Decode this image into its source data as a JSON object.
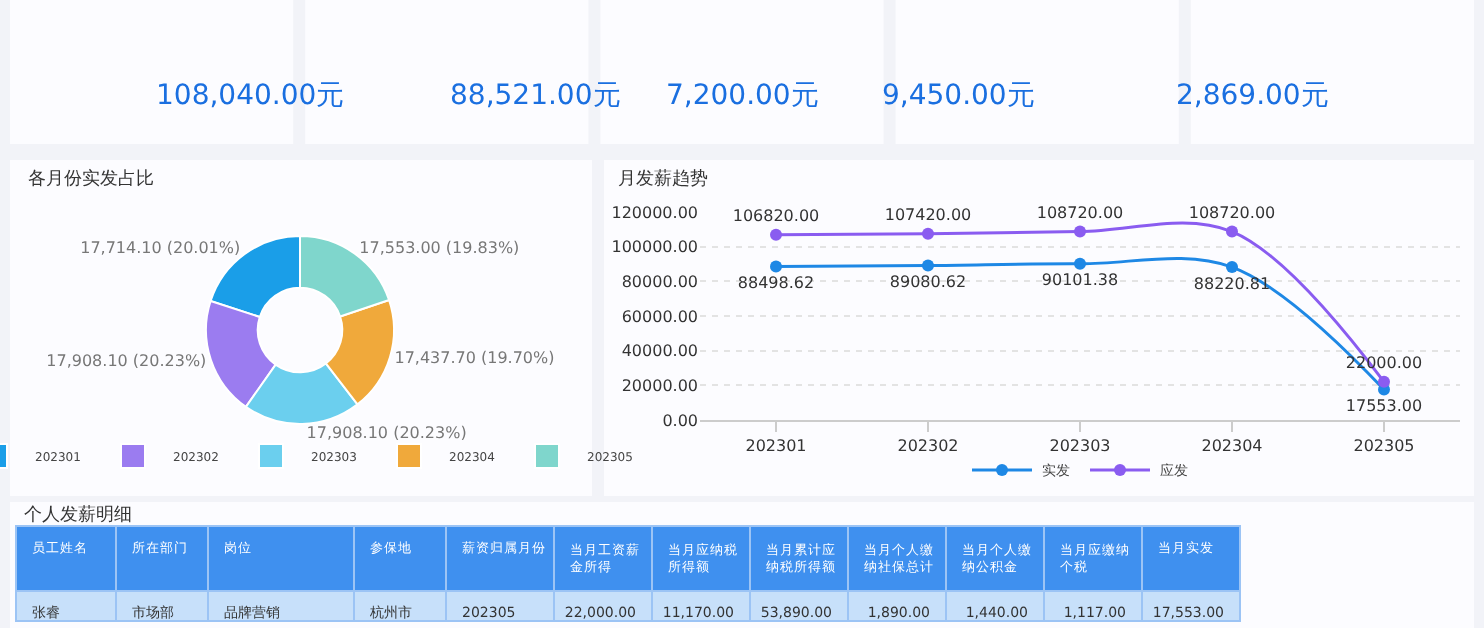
{
  "chart_data": [
    {
      "type": "other",
      "annotations": [
        "108,040.00元",
        "88,521.00元",
        "7,200.00元",
        "9,450.00元",
        "2,869.00元"
      ]
    },
    {
      "type": "donut",
      "title": "各月份实发占比",
      "categories": [
        "202301",
        "202302",
        "202303",
        "202304",
        "202305"
      ],
      "values": [
        17714.1,
        17908.1,
        17908.1,
        17437.7,
        17553.0
      ],
      "colors": [
        "#1a9ee8",
        "#9b7cf0",
        "#6bcfee",
        "#f0a93b",
        "#7fd6cc"
      ],
      "value_labels": [
        "17,714.10 (20.01%)",
        "17,908.10 (20.23%)",
        "17,908.10 (20.23%)",
        "17,437.70 (19.70%)",
        "17,553.00 (19.83%)"
      ],
      "legend": "bottom"
    },
    {
      "type": "line",
      "title": "月发薪趋势",
      "categories": [
        "202301",
        "202302",
        "202303",
        "202304",
        "202305"
      ],
      "series": [
        {
          "name": "实发",
          "color": "#1e88e5",
          "values": [
            88498.62,
            89080.62,
            90101.38,
            88220.81,
            17553.0
          ],
          "value_labels": [
            "88498.62",
            "89080.62",
            "90101.38",
            "88220.81",
            "17553.00"
          ]
        },
        {
          "name": "应发",
          "color": "#8a5cf0",
          "values": [
            106820,
            107420,
            108720,
            108720,
            22000
          ],
          "value_labels": [
            "106820.00",
            "107420.00",
            "108720.00",
            "108720.00",
            "22000.00"
          ]
        }
      ],
      "ylim": [
        0,
        120000
      ],
      "yticks": [
        {
          "value": 0,
          "label": "0.00"
        },
        {
          "value": 20000,
          "label": "20000.00"
        },
        {
          "value": 40000,
          "label": "40000.00"
        },
        {
          "value": 60000,
          "label": "60000.00"
        },
        {
          "value": 80000,
          "label": "80000.00"
        },
        {
          "value": 100000,
          "label": "100000.00"
        },
        {
          "value": 120000,
          "label": "120000.00"
        }
      ],
      "grid": "y",
      "legend": "bottom",
      "marker": "circle",
      "line_style": "solid"
    },
    {
      "type": "other",
      "title": "个人发薪明细",
      "categories": [
        "员工姓名",
        "所在部门",
        "岗位",
        "参保地",
        "薪资归属月份",
        "当月工资薪金所得",
        "当月应纳税所得额",
        "当月累计应纳税所得额",
        "当月个人缴纳社保总计",
        "当月个人缴纳公积金",
        "当月应缴纳个税",
        "当月实发",
        null
      ],
      "annotations": [
        "张睿",
        "市场部",
        "品牌营销",
        "杭州市",
        "202305",
        "22,000.00",
        "11,170.00",
        "53,890.00",
        "1,890.00",
        "1,440.00",
        "1,117.00",
        "17,553.00",
        null
      ]
    }
  ]
}
